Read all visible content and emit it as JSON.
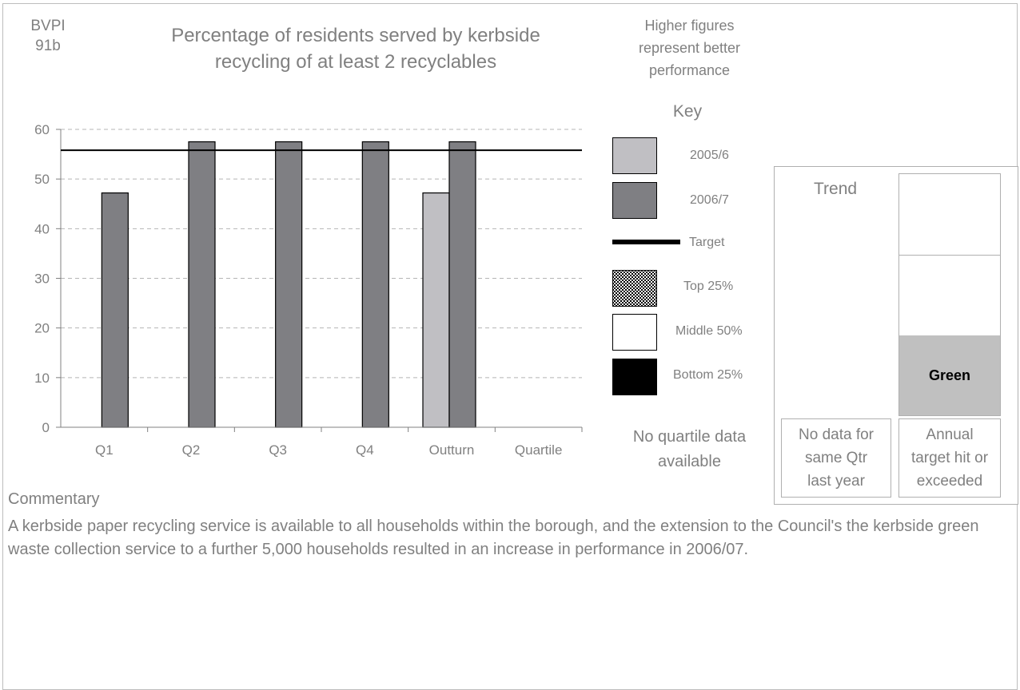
{
  "header": {
    "bvpi_line1": "BVPI",
    "bvpi_line2": "91b",
    "title_line1": "Percentage of residents served by kerbside",
    "title_line2": "recycling of at least 2 recyclables",
    "note_line1": "Higher figures",
    "note_line2": "represent better",
    "note_line3": "performance"
  },
  "key": {
    "title": "Key",
    "items": [
      {
        "label": "2005/6",
        "color": "#c0bfc3"
      },
      {
        "label": "2006/7",
        "color": "#7f7f83"
      },
      {
        "label": "Target",
        "color": "#000000"
      },
      {
        "label": "Top 25%",
        "color": "checker"
      },
      {
        "label": "Middle 50%",
        "color": "#ffffff"
      },
      {
        "label": "Bottom 25%",
        "color": "#000000"
      }
    ],
    "quartile_line1": "No quartile data",
    "quartile_line2": "available"
  },
  "trend": {
    "title": "Trend",
    "status": "Green",
    "status_color": "#c0c0c0",
    "trend_note_lines": [
      "No data for",
      "same Qtr",
      "last year"
    ],
    "target_note_lines": [
      "Annual",
      "target hit or",
      "exceeded"
    ]
  },
  "chart_data": {
    "type": "bar",
    "categories": [
      "Q1",
      "Q2",
      "Q3",
      "Q4",
      "Outturn",
      "Quartile"
    ],
    "series": [
      {
        "name": "2005/6",
        "values": [
          null,
          null,
          null,
          null,
          47.2,
          null
        ],
        "color": "#c0bfc3"
      },
      {
        "name": "2006/7",
        "values": [
          47.2,
          57.5,
          57.5,
          57.5,
          57.5,
          null
        ],
        "color": "#7f7f83"
      }
    ],
    "target": 55.8,
    "ylim": [
      0,
      60
    ],
    "yticks": [
      0,
      10,
      20,
      30,
      40,
      50,
      60
    ],
    "grid": true,
    "legend": "right"
  },
  "commentary": {
    "title": "Commentary",
    "text": "A kerbside paper recycling service is available to all households within the borough, and the extension to the Council's the kerbside green waste collection service to a further 5,000 households resulted in an increase in performance in 2006/07."
  }
}
